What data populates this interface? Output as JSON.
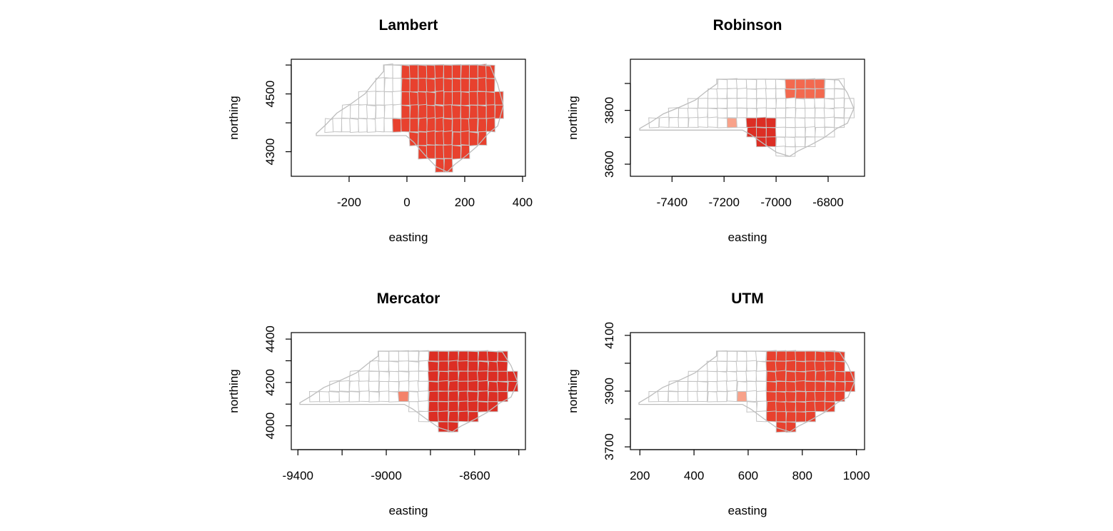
{
  "chart_data": [
    {
      "type": "map",
      "title": "Lambert",
      "xlabel": "easting",
      "ylabel": "northing",
      "xlim": [
        -400,
        410
      ],
      "ylim": [
        4215,
        4620
      ],
      "x_ticks": [
        -200,
        0,
        200,
        400
      ],
      "y_ticks": [
        4300,
        4400,
        4500,
        4600
      ],
      "y_tick_labels": [
        "4300",
        "",
        "4500",
        ""
      ],
      "colors": {
        "highlight": "#e8412e",
        "none": "#ffffff"
      }
    },
    {
      "type": "map",
      "title": "Robinson",
      "xlabel": "easting",
      "ylabel": "northing",
      "xlim": [
        -7560,
        -6660
      ],
      "ylim": [
        3555,
        3990
      ],
      "x_ticks": [
        -7400,
        -7200,
        -7000,
        -6800
      ],
      "y_ticks": [
        3600,
        3700,
        3800,
        3900
      ],
      "y_tick_labels": [
        "3600",
        "",
        "3800",
        ""
      ],
      "colors": {
        "dark": "#dc2e24",
        "medium": "#f3694f",
        "light": "#f8a28a",
        "none": "#ffffff"
      }
    },
    {
      "type": "map",
      "title": "Mercator",
      "xlabel": "easting",
      "ylabel": "northing",
      "xlim": [
        -9430,
        -8370
      ],
      "ylim": [
        3890,
        4430
      ],
      "x_ticks": [
        -9400,
        -9200,
        -9000,
        -8800,
        -8600,
        -8400
      ],
      "x_tick_labels": [
        "-9400",
        "",
        "-9000",
        "",
        "-8600",
        ""
      ],
      "y_ticks": [
        4000,
        4100,
        4200,
        4300,
        4400
      ],
      "y_tick_labels": [
        "4000",
        "",
        "4200",
        "",
        "4400"
      ],
      "colors": {
        "highlight": "#dc2e24",
        "light": "#f4826a",
        "none": "#ffffff"
      }
    },
    {
      "type": "map",
      "title": "UTM",
      "xlabel": "easting",
      "ylabel": "northing",
      "xlim": [
        165,
        1030
      ],
      "ylim": [
        3690,
        4110
      ],
      "x_ticks": [
        200,
        400,
        600,
        800,
        1000
      ],
      "y_ticks": [
        3700,
        3800,
        3900,
        4000,
        4100
      ],
      "y_tick_labels": [
        "3700",
        "",
        "3900",
        "",
        "4100"
      ],
      "colors": {
        "highlight": "#e8412e",
        "light": "#f8a28a",
        "none": "#ffffff"
      }
    }
  ]
}
